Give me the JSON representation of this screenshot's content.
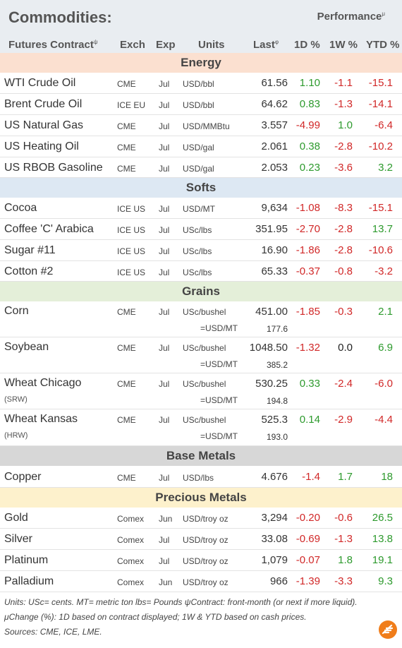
{
  "header": {
    "title": "Commodities:",
    "performance": "Performance",
    "perf_mark": "μ",
    "col_contract": "Futures Contract",
    "contract_mark": "ψ",
    "col_exch": "Exch",
    "col_exp": "Exp",
    "col_units": "Units",
    "col_last": "Last",
    "last_mark": "φ",
    "col_1d": "1D %",
    "col_1w": "1W %",
    "col_ytd": "YTD %"
  },
  "sections": {
    "energy": "Energy",
    "softs": "Softs",
    "grains": "Grains",
    "base": "Base Metals",
    "precious": "Precious Metals"
  },
  "rows": [
    {
      "name": "WTI Crude Oil",
      "exch": "CME",
      "exp": "Jul",
      "units": "USD/bbl",
      "last": "61.56",
      "d1": "1.10",
      "w1": "-1.1",
      "ytd": "-15.1"
    },
    {
      "name": "Brent Crude Oil",
      "exch": "ICE EU",
      "exp": "Jul",
      "units": "USD/bbl",
      "last": "64.62",
      "d1": "0.83",
      "w1": "-1.3",
      "ytd": "-14.1"
    },
    {
      "name": "US Natural Gas",
      "exch": "CME",
      "exp": "Jul",
      "units": "USD/MMBtu",
      "last": "3.557",
      "d1": "-4.99",
      "w1": "1.0",
      "ytd": "-6.4"
    },
    {
      "name": "US Heating Oil",
      "exch": "CME",
      "exp": "Jul",
      "units": "USD/gal",
      "last": "2.061",
      "d1": "0.38",
      "w1": "-2.8",
      "ytd": "-10.2"
    },
    {
      "name": "US RBOB Gasoline",
      "exch": "CME",
      "exp": "Jul",
      "units": "USD/gal",
      "last": "2.053",
      "d1": "0.23",
      "w1": "-3.6",
      "ytd": "3.2"
    },
    {
      "name": "Cocoa",
      "exch": "ICE US",
      "exp": "Jul",
      "units": "USD/MT",
      "last": "9,634",
      "d1": "-1.08",
      "w1": "-8.3",
      "ytd": "-15.1"
    },
    {
      "name": "Coffee 'C' Arabica",
      "exch": "ICE US",
      "exp": "Jul",
      "units": "USc/lbs",
      "last": "351.95",
      "d1": "-2.70",
      "w1": "-2.8",
      "ytd": "13.7"
    },
    {
      "name": "Sugar #11",
      "exch": "ICE US",
      "exp": "Jul",
      "units": "USc/lbs",
      "last": "16.90",
      "d1": "-1.86",
      "w1": "-2.8",
      "ytd": "-10.6"
    },
    {
      "name": "Cotton #2",
      "exch": "ICE US",
      "exp": "Jul",
      "units": "USc/lbs",
      "last": "65.33",
      "d1": "-0.37",
      "w1": "-0.8",
      "ytd": "-3.2"
    },
    {
      "name": "Corn",
      "sub": "",
      "exch": "CME",
      "exp": "Jul",
      "units": "USc/bushel",
      "units2": "=USD/MT",
      "last": "451.00",
      "last2": "177.6",
      "d1": "-1.85",
      "w1": "-0.3",
      "ytd": "2.1"
    },
    {
      "name": "Soybean",
      "sub": "",
      "exch": "CME",
      "exp": "Jul",
      "units": "USc/bushel",
      "units2": "=USD/MT",
      "last": "1048.50",
      "last2": "385.2",
      "d1": "-1.32",
      "w1": "0.0",
      "ytd": "6.9"
    },
    {
      "name": "Wheat Chicago",
      "sub": "(SRW)",
      "exch": "CME",
      "exp": "Jul",
      "units": "USc/bushel",
      "units2": "=USD/MT",
      "last": "530.25",
      "last2": "194.8",
      "d1": "0.33",
      "w1": "-2.4",
      "ytd": "-6.0"
    },
    {
      "name": "Wheat Kansas",
      "sub": "(HRW)",
      "exch": "CME",
      "exp": "Jul",
      "units": "USc/bushel",
      "units2": "=USD/MT",
      "last": "525.3",
      "last2": "193.0",
      "d1": "0.14",
      "w1": "-2.9",
      "ytd": "-4.4"
    },
    {
      "name": "Copper",
      "exch": "CME",
      "exp": "Jul",
      "units": "USD/lbs",
      "last": "4.676",
      "d1": "-1.4",
      "w1": "1.7",
      "ytd": "18"
    },
    {
      "name": "Gold",
      "exch": "Comex",
      "exp": "Jun",
      "units": "USD/troy oz",
      "last": "3,294",
      "d1": "-0.20",
      "w1": "-0.6",
      "ytd": "26.5"
    },
    {
      "name": "Silver",
      "exch": "Comex",
      "exp": "Jul",
      "units": "USD/troy oz",
      "last": "33.08",
      "d1": "-0.69",
      "w1": "-1.3",
      "ytd": "13.8"
    },
    {
      "name": "Platinum",
      "exch": "Comex",
      "exp": "Jul",
      "units": "USD/troy oz",
      "last": "1,079",
      "d1": "-0.07",
      "w1": "1.8",
      "ytd": "19.1"
    },
    {
      "name": "Palladium",
      "exch": "Comex",
      "exp": "Jun",
      "units": "USD/troy oz",
      "last": "966",
      "d1": "-1.39",
      "w1": "-3.3",
      "ytd": "9.3"
    }
  ],
  "footer": {
    "line1": "Units: USc= cents.   MT= metric ton   lbs= Pounds  ψContract: front-month (or next if more liquid).",
    "line2": "μChange (%): 1D based on contract displayed; 1W & YTD based on cash prices.",
    "line3": "Sources: CME, ICE, LME."
  },
  "colors": {
    "header_bg": "#e9edf1",
    "energy_bg": "#fbe0d0",
    "softs_bg": "#dde8f3",
    "grains_bg": "#e4efd9",
    "base_bg": "#d7d7d7",
    "precious_bg": "#fdf1cc",
    "positive": "#2d9a2d",
    "negative": "#d12828",
    "logo": "#f07d1a"
  },
  "icons": {
    "logo": "feather-logo-icon"
  }
}
